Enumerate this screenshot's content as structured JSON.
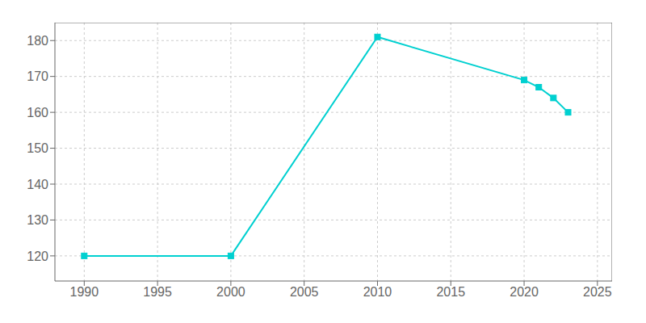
{
  "chart_data": {
    "type": "line",
    "x": [
      1990,
      2000,
      2010,
      2020,
      2021,
      2022,
      2023
    ],
    "values": [
      120,
      120,
      181,
      169,
      167,
      164,
      160
    ],
    "color": "#00d0d0",
    "marker": "square",
    "xlim": [
      1988,
      2026
    ],
    "ylim": [
      113,
      185
    ],
    "xticks": [
      1990,
      1995,
      2000,
      2005,
      2010,
      2015,
      2020,
      2025
    ],
    "yticks": [
      120,
      130,
      140,
      150,
      160,
      170,
      180
    ],
    "grid": true
  }
}
